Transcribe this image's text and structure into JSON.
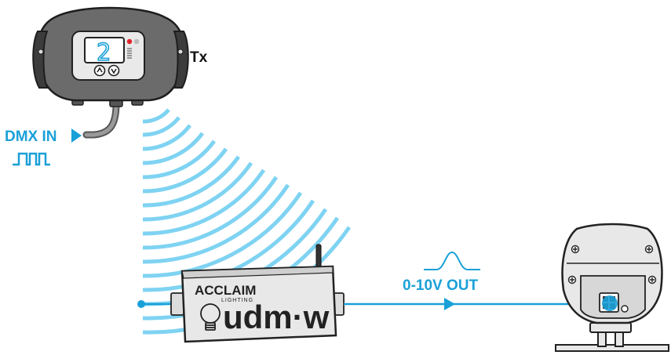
{
  "labels": {
    "dmx_in": "DMX IN",
    "tx": "Tx",
    "output": "0-10V OUT",
    "brand": "ACCLAIM",
    "brand_sub": "LIGHTING",
    "product": "udm·w",
    "display_digit": "2"
  },
  "colors": {
    "accent": "#1aa0d8",
    "wave": "#7fd3f2",
    "device_body": "#e8e8e8",
    "outline": "#222222"
  },
  "icons": {
    "dmx_signal": "square-wave-icon",
    "arrow": "play-triangle-icon",
    "analog_signal": "bell-curve-icon",
    "bulb": "light-bulb-icon"
  }
}
